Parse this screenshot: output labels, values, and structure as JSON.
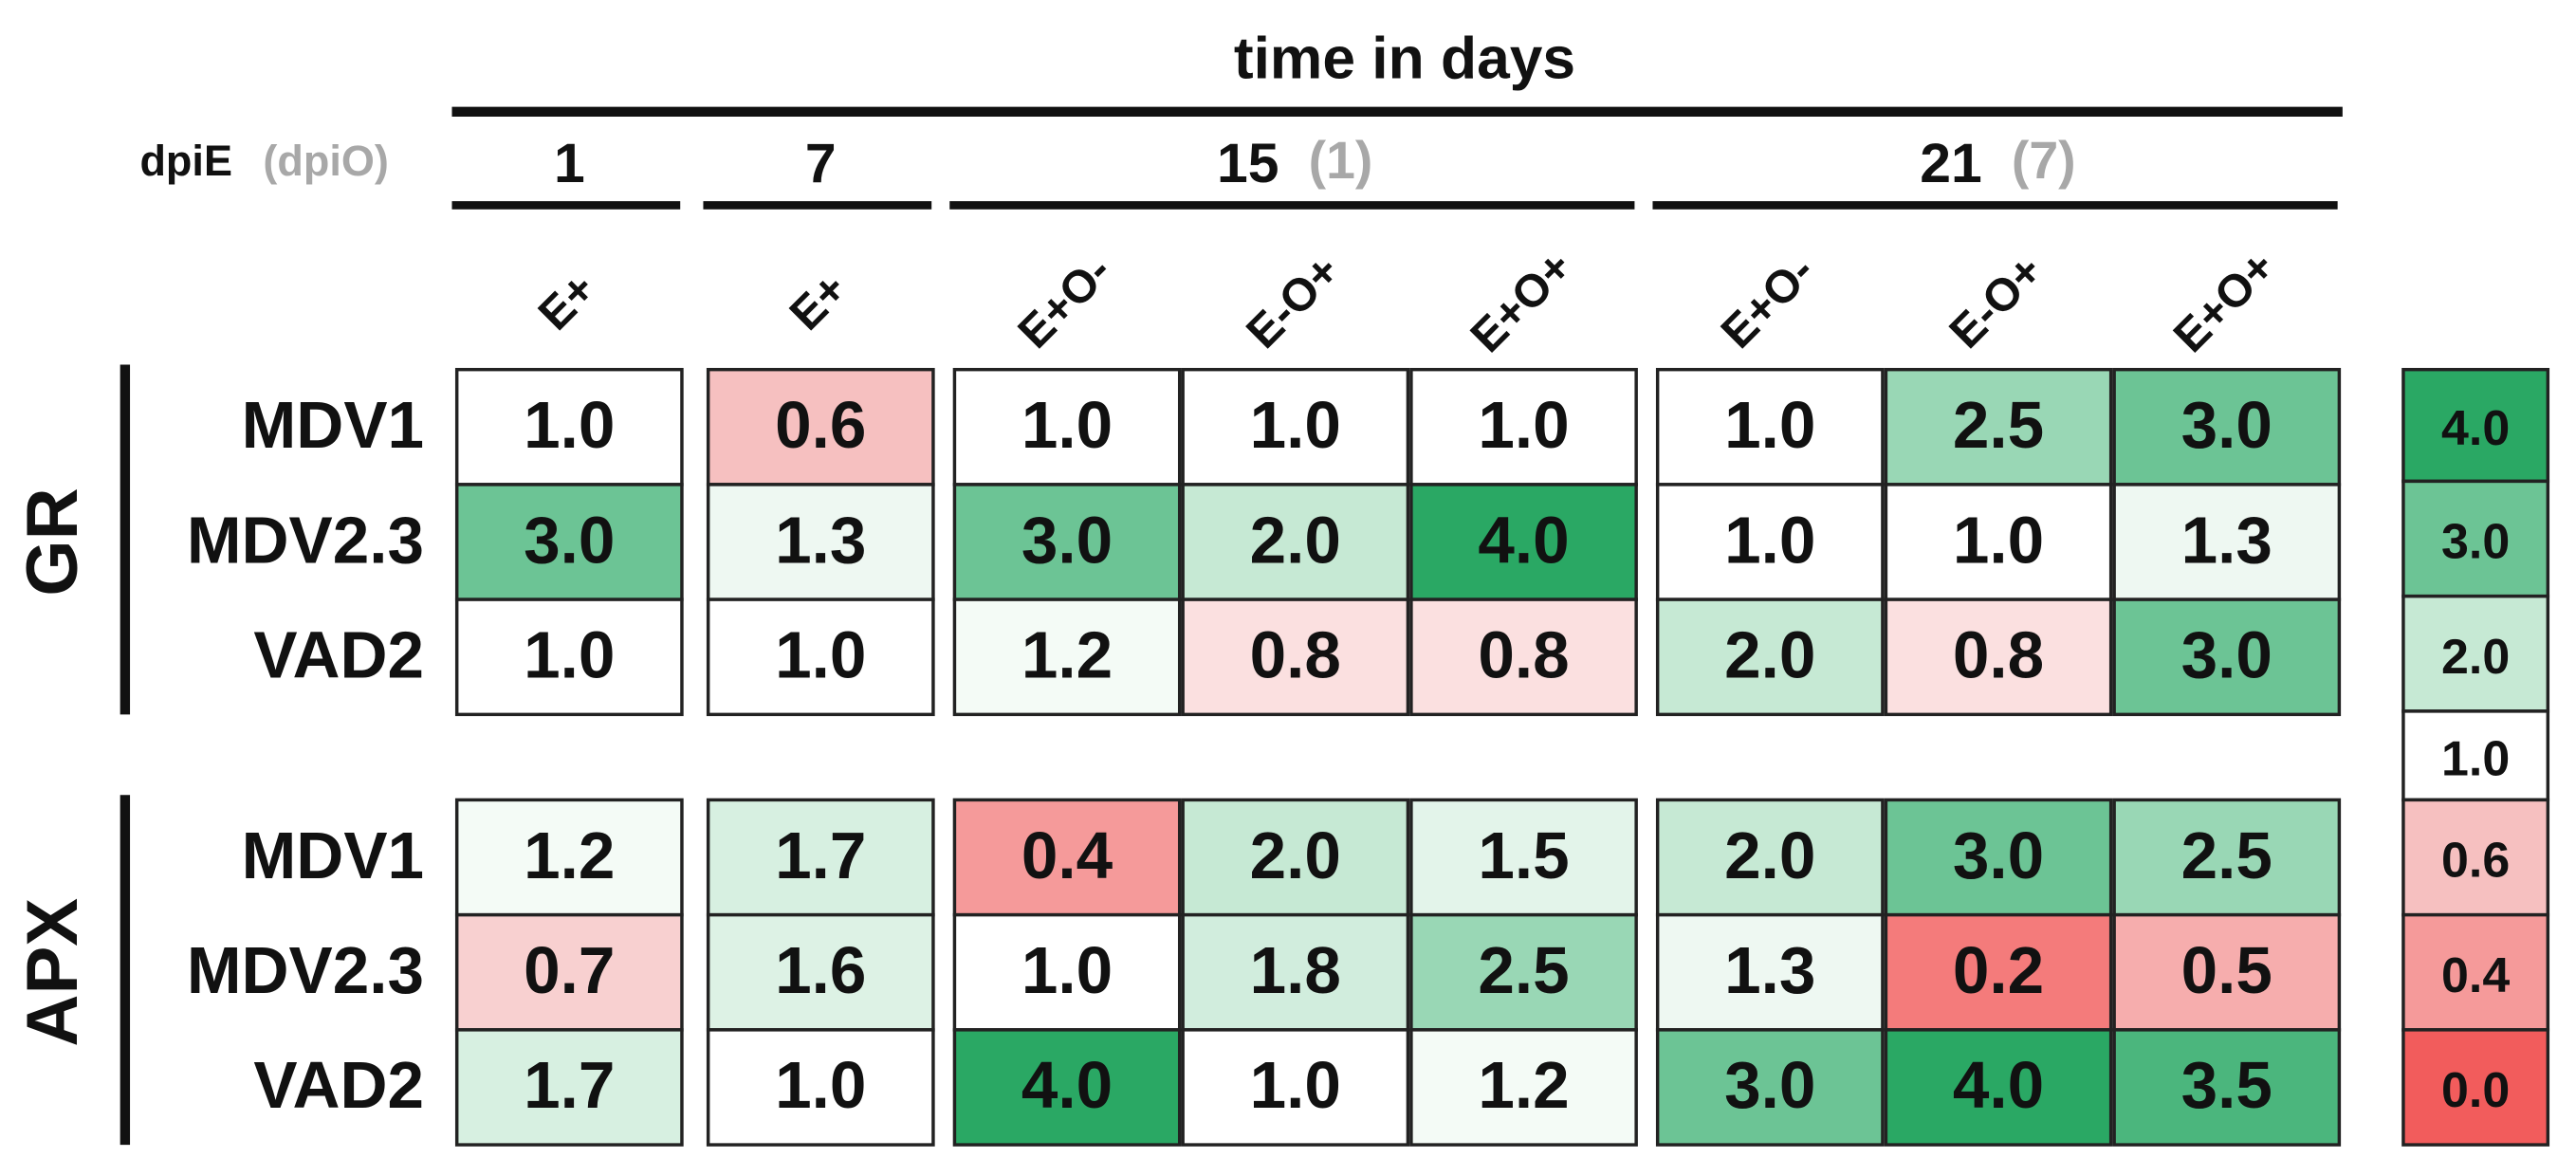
{
  "header": {
    "title": "time in days",
    "dpi_label": "dpiE",
    "dpi_label_2": "(dpiO)"
  },
  "days": [
    {
      "label": "1",
      "treatments": [
        "E+"
      ]
    },
    {
      "label": "7",
      "treatments": [
        "E+"
      ]
    },
    {
      "label": "15",
      "sub": "(1)",
      "treatments": [
        "E+O-",
        "E-O+",
        "E+O+"
      ]
    },
    {
      "label": "21",
      "sub": "(7)",
      "treatments": [
        "E+O-",
        "E-O+",
        "E+O+"
      ]
    }
  ],
  "blocks": [
    {
      "name": "GR",
      "rows": [
        {
          "label": "MDV1",
          "cells": [
            "1.0",
            "0.6",
            "1.0",
            "1.0",
            "1.0",
            "1.0",
            "2.5",
            "3.0"
          ]
        },
        {
          "label": "MDV2.3",
          "cells": [
            "3.0",
            "1.3",
            "3.0",
            "2.0",
            "4.0",
            "1.0",
            "1.0",
            "1.3"
          ]
        },
        {
          "label": "VAD2",
          "cells": [
            "1.0",
            "1.0",
            "1.2",
            "0.8",
            "0.8",
            "2.0",
            "0.8",
            "3.0"
          ]
        }
      ]
    },
    {
      "name": "APX",
      "rows": [
        {
          "label": "MDV1",
          "cells": [
            "1.2",
            "1.7",
            "0.4",
            "2.0",
            "1.5",
            "2.0",
            "3.0",
            "2.5"
          ]
        },
        {
          "label": "MDV2.3",
          "cells": [
            "0.7",
            "1.6",
            "1.0",
            "1.8",
            "2.5",
            "1.3",
            "0.2",
            "0.5"
          ]
        },
        {
          "label": "VAD2",
          "cells": [
            "1.7",
            "1.0",
            "4.0",
            "1.0",
            "1.2",
            "3.0",
            "4.0",
            "3.5"
          ]
        }
      ]
    }
  ],
  "legend": [
    {
      "label": "4.0",
      "color": "#2aa864"
    },
    {
      "label": "3.0",
      "color": "#6cc495"
    },
    {
      "label": "2.0",
      "color": "#c6e9d4"
    },
    {
      "label": "1.0",
      "color": "#ffffff"
    },
    {
      "label": "0.6",
      "color": "#f6c0c0"
    },
    {
      "label": "0.4",
      "color": "#f59a9a"
    },
    {
      "label": "0.0",
      "color": "#f25c5c"
    }
  ]
}
